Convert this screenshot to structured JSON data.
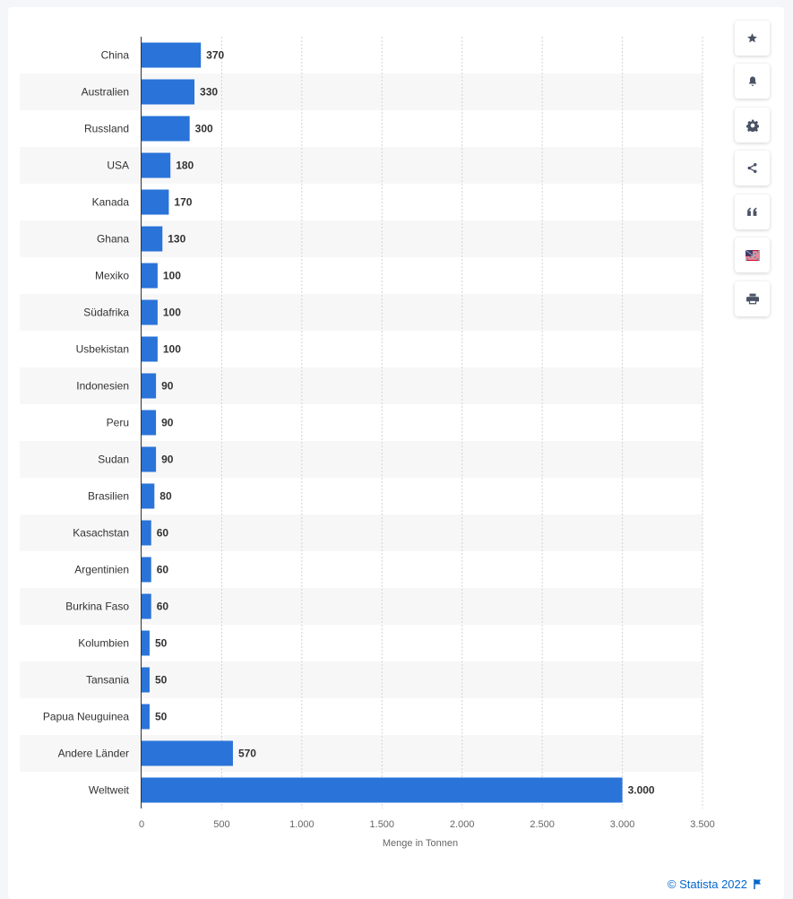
{
  "chart_data": {
    "type": "bar",
    "orientation": "horizontal",
    "categories": [
      "China",
      "Australien",
      "Russland",
      "USA",
      "Kanada",
      "Ghana",
      "Mexiko",
      "Südafrika",
      "Usbekistan",
      "Indonesien",
      "Peru",
      "Sudan",
      "Brasilien",
      "Kasachstan",
      "Argentinien",
      "Burkina Faso",
      "Kolumbien",
      "Tansania",
      "Papua Neuguinea",
      "Andere Länder",
      "Weltweit"
    ],
    "values": [
      370,
      330,
      300,
      180,
      170,
      130,
      100,
      100,
      100,
      90,
      90,
      90,
      80,
      60,
      60,
      60,
      50,
      50,
      50,
      570,
      3000
    ],
    "value_labels": [
      "370",
      "330",
      "300",
      "180",
      "170",
      "130",
      "100",
      "100",
      "100",
      "90",
      "90",
      "90",
      "80",
      "60",
      "60",
      "60",
      "50",
      "50",
      "50",
      "570",
      "3.000"
    ],
    "xlabel": "Menge in Tonnen",
    "ylabel": "",
    "xlim": [
      0,
      3500
    ],
    "ticks": [
      0,
      500,
      1000,
      1500,
      2000,
      2500,
      3000,
      3500
    ],
    "tick_labels": [
      "0",
      "500",
      "1.000",
      "1.500",
      "2.000",
      "2.500",
      "3.000",
      "3.500"
    ],
    "bar_color": "#2a73d8",
    "grid": true
  },
  "toolbar": [
    {
      "name": "favorite-button",
      "icon": "star-icon"
    },
    {
      "name": "notification-button",
      "icon": "bell-icon"
    },
    {
      "name": "settings-button",
      "icon": "gear-icon"
    },
    {
      "name": "share-button",
      "icon": "share-icon"
    },
    {
      "name": "cite-button",
      "icon": "quote-icon"
    },
    {
      "name": "language-button",
      "icon": "flag-icon"
    },
    {
      "name": "print-button",
      "icon": "print-icon"
    }
  ],
  "credit": {
    "text": "© Statista 2022",
    "icon": "flag-icon"
  }
}
